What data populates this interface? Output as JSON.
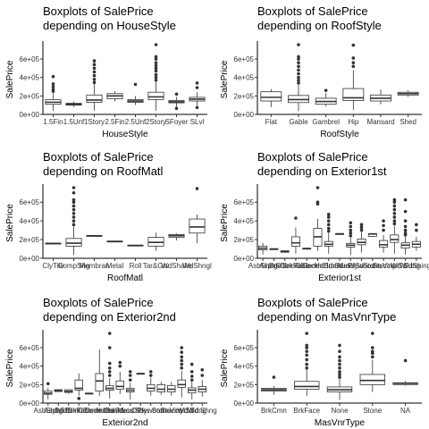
{
  "chart_data": [
    {
      "type": "boxplot",
      "title_line1": "Boxplots of SalePrice",
      "title_line2": " depending on HouseStyle",
      "xlabel": "HouseStyle",
      "ylabel": "SalePrice",
      "ylim": [
        0,
        755000
      ],
      "yticks": [
        "0e+00",
        "2e+05",
        "4e+05",
        "6e+05"
      ],
      "yticks_values": [
        0,
        200000,
        400000,
        600000
      ],
      "categories": [
        "1.5Fin",
        "1.5Unf",
        "1Story",
        "2.5Fin",
        "2.5Unf",
        "2Story",
        "SFoyer",
        "SLvl"
      ],
      "boxes": [
        {
          "lo": 40000,
          "q1": 110000,
          "med": 132000,
          "q3": 160000,
          "hi": 230000,
          "outliers": [
            250000,
            270000,
            300000,
            330000,
            410000
          ]
        },
        {
          "lo": 80000,
          "q1": 100000,
          "med": 111000,
          "q3": 120000,
          "hi": 140000,
          "outliers": []
        },
        {
          "lo": 40000,
          "q1": 130000,
          "med": 155000,
          "q3": 210000,
          "hi": 330000,
          "outliers": [
            345000,
            380000,
            420000,
            460000,
            500000,
            540000,
            580000
          ]
        },
        {
          "lo": 140000,
          "q1": 170000,
          "med": 200000,
          "q3": 225000,
          "hi": 250000,
          "outliers": []
        },
        {
          "lo": 100000,
          "q1": 130000,
          "med": 145000,
          "q3": 160000,
          "hi": 200000,
          "outliers": [
            325000
          ]
        },
        {
          "lo": 40000,
          "q1": 160000,
          "med": 190000,
          "q3": 240000,
          "hi": 350000,
          "outliers": [
            370000,
            400000,
            430000,
            470000,
            500000,
            530000,
            560000,
            600000,
            625000,
            755000
          ]
        },
        {
          "lo": 75000,
          "q1": 125000,
          "med": 136000,
          "q3": 150000,
          "hi": 190000,
          "outliers": [
            65000,
            220000
          ]
        },
        {
          "lo": 95000,
          "q1": 145000,
          "med": 165000,
          "q3": 185000,
          "hi": 240000,
          "outliers": [
            75000,
            290000,
            340000
          ]
        }
      ]
    },
    {
      "type": "boxplot",
      "title_line1": "Boxplots of SalePrice",
      "title_line2": " depending on RoofStyle",
      "xlabel": "RoofStyle",
      "ylabel": "SalePrice",
      "ylim": [
        0,
        755000
      ],
      "yticks": [
        "0e+00",
        "2e+05",
        "4e+05",
        "6e+05"
      ],
      "yticks_values": [
        0,
        200000,
        400000,
        600000
      ],
      "categories": [
        "Flat",
        "Gable",
        "Gambrel",
        "Hip",
        "Mansard",
        "Shed"
      ],
      "boxes": [
        {
          "lo": 80000,
          "q1": 145000,
          "med": 185000,
          "q3": 245000,
          "hi": 275000,
          "outliers": []
        },
        {
          "lo": 35000,
          "q1": 128000,
          "med": 160000,
          "q3": 205000,
          "hi": 320000,
          "outliers": [
            340000,
            370000,
            400000,
            440000,
            480000,
            520000,
            560000,
            600000,
            625000,
            755000
          ]
        },
        {
          "lo": 85000,
          "q1": 110000,
          "med": 140000,
          "q3": 175000,
          "hi": 230000,
          "outliers": [
            260000
          ]
        },
        {
          "lo": 50000,
          "q1": 150000,
          "med": 180000,
          "q3": 280000,
          "hi": 480000,
          "outliers": [
            520000,
            560000,
            610000,
            750000
          ]
        },
        {
          "lo": 110000,
          "q1": 145000,
          "med": 175000,
          "q3": 210000,
          "hi": 270000,
          "outliers": []
        },
        {
          "lo": 190000,
          "q1": 210000,
          "med": 225000,
          "q3": 240000,
          "hi": 260000,
          "outliers": []
        }
      ]
    },
    {
      "type": "boxplot",
      "title_line1": "Boxplots of SalePrice",
      "title_line2": " depending on RoofMatl",
      "xlabel": "RoofMatl",
      "ylabel": "SalePrice",
      "ylim": [
        0,
        755000
      ],
      "yticks": [
        "0e+00",
        "2e+05",
        "4e+05",
        "6e+05"
      ],
      "yticks_values": [
        0,
        200000,
        400000,
        600000
      ],
      "categories": [
        "ClyTile",
        "CompShg",
        "Membran",
        "Metal",
        "Roll",
        "Tar&Grv",
        "WdShake",
        "WdShngl"
      ],
      "boxes": [
        {
          "lo": 160000,
          "q1": 160000,
          "med": 160000,
          "q3": 160000,
          "hi": 160000,
          "outliers": []
        },
        {
          "lo": 35000,
          "q1": 130000,
          "med": 162000,
          "q3": 212000,
          "hi": 340000,
          "outliers": [
            360000,
            400000,
            440000,
            480000,
            520000,
            560000,
            600000,
            625000,
            700000,
            755000
          ]
        },
        {
          "lo": 240000,
          "q1": 240000,
          "med": 241000,
          "q3": 242000,
          "hi": 242000,
          "outliers": []
        },
        {
          "lo": 180000,
          "q1": 180000,
          "med": 181000,
          "q3": 182000,
          "hi": 182000,
          "outliers": []
        },
        {
          "lo": 137000,
          "q1": 137000,
          "med": 138000,
          "q3": 139000,
          "hi": 139000,
          "outliers": []
        },
        {
          "lo": 80000,
          "q1": 130000,
          "med": 170000,
          "q3": 225000,
          "hi": 275000,
          "outliers": []
        },
        {
          "lo": 190000,
          "q1": 225000,
          "med": 242000,
          "q3": 255000,
          "hi": 265000,
          "outliers": []
        },
        {
          "lo": 160000,
          "q1": 270000,
          "med": 335000,
          "q3": 420000,
          "hi": 470000,
          "outliers": [
            745000
          ]
        }
      ]
    },
    {
      "type": "boxplot",
      "title_line1": "Boxplots of SalePrice",
      "title_line2": " depending on Exterior1st",
      "xlabel": "Exterior1st",
      "ylabel": "SalePrice",
      "ylim": [
        0,
        755000
      ],
      "yticks": [
        "0e+00",
        "2e+05",
        "4e+05",
        "6e+05"
      ],
      "yticks_values": [
        0,
        200000,
        400000,
        600000
      ],
      "categories": [
        "AsbShng",
        "AsphShn",
        "BrkComm",
        "BrkFace",
        "CBlock",
        "CemntBd",
        "HdBoard",
        "ImStucc",
        "MetalSd",
        "Plywood",
        "Stone",
        "Stucco",
        "VinylSd",
        "Wd Sdng",
        "WdShing"
      ],
      "boxes": [
        {
          "lo": 40000,
          "q1": 90000,
          "med": 108000,
          "q3": 130000,
          "hi": 165000,
          "outliers": []
        },
        {
          "lo": 100000,
          "q1": 100000,
          "med": 100000,
          "q3": 100000,
          "hi": 100000,
          "outliers": []
        },
        {
          "lo": 60000,
          "q1": 65000,
          "med": 71000,
          "q3": 80000,
          "hi": 82000,
          "outliers": []
        },
        {
          "lo": 50000,
          "q1": 130000,
          "med": 165000,
          "q3": 230000,
          "hi": 330000,
          "outliers": [
            430000
          ]
        },
        {
          "lo": 105000,
          "q1": 105000,
          "med": 105000,
          "q3": 105000,
          "hi": 105000,
          "outliers": []
        },
        {
          "lo": 80000,
          "q1": 130000,
          "med": 230000,
          "q3": 320000,
          "hi": 420000,
          "outliers": [
            580000,
            600000,
            755000
          ]
        },
        {
          "lo": 50000,
          "q1": 130000,
          "med": 150000,
          "q3": 180000,
          "hi": 270000,
          "outliers": [
            290000,
            320000,
            360000,
            400000,
            440000,
            470000
          ]
        },
        {
          "lo": 262000,
          "q1": 262000,
          "med": 262000,
          "q3": 262000,
          "hi": 262000,
          "outliers": []
        },
        {
          "lo": 35000,
          "q1": 120000,
          "med": 140000,
          "q3": 160000,
          "hi": 220000,
          "outliers": [
            240000,
            270000,
            300000,
            340000,
            380000
          ]
        },
        {
          "lo": 60000,
          "q1": 145000,
          "med": 170000,
          "q3": 205000,
          "hi": 280000,
          "outliers": [
            300000,
            330000,
            360000
          ]
        },
        {
          "lo": 230000,
          "q1": 235000,
          "med": 260000,
          "q3": 265000,
          "hi": 270000,
          "outliers": []
        },
        {
          "lo": 60000,
          "q1": 120000,
          "med": 145000,
          "q3": 190000,
          "hi": 250000,
          "outliers": [
            300000,
            350000,
            400000
          ]
        },
        {
          "lo": 50000,
          "q1": 170000,
          "med": 200000,
          "q3": 250000,
          "hi": 350000,
          "outliers": [
            370000,
            400000,
            440000,
            480000,
            520000,
            560000,
            600000,
            625000
          ]
        },
        {
          "lo": 40000,
          "q1": 110000,
          "med": 140000,
          "q3": 165000,
          "hi": 230000,
          "outliers": [
            250000,
            270000,
            300000,
            340000,
            400000,
            500000,
            625000
          ]
        },
        {
          "lo": 80000,
          "q1": 120000,
          "med": 150000,
          "q3": 180000,
          "hi": 230000,
          "outliers": [
            300000,
            360000
          ]
        }
      ]
    },
    {
      "type": "boxplot",
      "title_line1": "Boxplots of SalePrice",
      "title_line2": " depending on Exterior2nd",
      "xlabel": "Exterior2nd",
      "ylabel": "SalePrice",
      "ylim": [
        0,
        755000
      ],
      "yticks": [
        "0e+00",
        "2e+05",
        "4e+05",
        "6e+05"
      ],
      "yticks_values": [
        0,
        200000,
        400000,
        600000
      ],
      "categories": [
        "AsbShng",
        "AsphShn",
        "Brk Cmn",
        "BrkFace",
        "CBlock",
        "CmentBd",
        "HdBoard",
        "ImStucc",
        "MetalSd",
        "Other",
        "Plywood",
        "Stone",
        "Stucco",
        "VinylSd",
        "Wd Sdng",
        "Wd Shng"
      ],
      "boxes": [
        {
          "lo": 40000,
          "q1": 95000,
          "med": 108000,
          "q3": 130000,
          "hi": 165000,
          "outliers": [
            210000
          ]
        },
        {
          "lo": 120000,
          "q1": 125000,
          "med": 135000,
          "q3": 145000,
          "hi": 150000,
          "outliers": []
        },
        {
          "lo": 100000,
          "q1": 115000,
          "med": 128000,
          "q3": 145000,
          "hi": 150000,
          "outliers": []
        },
        {
          "lo": 80000,
          "q1": 140000,
          "med": 160000,
          "q3": 250000,
          "hi": 320000,
          "outliers": [
            50000
          ]
        },
        {
          "lo": 105000,
          "q1": 105000,
          "med": 105000,
          "q3": 105000,
          "hi": 105000,
          "outliers": []
        },
        {
          "lo": 80000,
          "q1": 130000,
          "med": 240000,
          "q3": 320000,
          "hi": 580000,
          "outliers": []
        },
        {
          "lo": 50000,
          "q1": 140000,
          "med": 160000,
          "q3": 190000,
          "hi": 270000,
          "outliers": [
            300000,
            340000,
            380000,
            430000,
            600000,
            755000
          ]
        },
        {
          "lo": 100000,
          "q1": 150000,
          "med": 180000,
          "q3": 240000,
          "hi": 340000,
          "outliers": [
            400000,
            440000
          ]
        },
        {
          "lo": 40000,
          "q1": 120000,
          "med": 140000,
          "q3": 160000,
          "hi": 220000,
          "outliers": [
            250000,
            300000,
            340000
          ]
        },
        {
          "lo": 320000,
          "q1": 320000,
          "med": 320000,
          "q3": 320000,
          "hi": 320000,
          "outliers": []
        },
        {
          "lo": 80000,
          "q1": 130000,
          "med": 160000,
          "q3": 200000,
          "hi": 275000,
          "outliers": [
            300000,
            340000
          ]
        },
        {
          "lo": 90000,
          "q1": 120000,
          "med": 150000,
          "q3": 200000,
          "hi": 230000,
          "outliers": []
        },
        {
          "lo": 80000,
          "q1": 120000,
          "med": 150000,
          "q3": 190000,
          "hi": 230000,
          "outliers": []
        },
        {
          "lo": 60000,
          "q1": 170000,
          "med": 200000,
          "q3": 250000,
          "hi": 350000,
          "outliers": [
            380000,
            420000,
            460000,
            500000,
            550000,
            600000
          ]
        },
        {
          "lo": 40000,
          "q1": 110000,
          "med": 140000,
          "q3": 165000,
          "hi": 230000,
          "outliers": [
            250000,
            290000,
            340000,
            420000
          ]
        },
        {
          "lo": 70000,
          "q1": 120000,
          "med": 150000,
          "q3": 180000,
          "hi": 250000,
          "outliers": [
            300000,
            360000
          ]
        }
      ]
    },
    {
      "type": "boxplot",
      "title_line1": "Boxplots of SalePrice",
      "title_line2": " depending on MasVnrType",
      "xlabel": "MasVnrType",
      "ylabel": "SalePrice",
      "ylim": [
        0,
        755000
      ],
      "yticks": [
        "0e+00",
        "2e+05",
        "4e+05",
        "6e+05"
      ],
      "yticks_values": [
        0,
        200000,
        400000,
        600000
      ],
      "categories": [
        "BrkCmn",
        "BrkFace",
        "None",
        "Stone",
        "NA"
      ],
      "boxes": [
        {
          "lo": 90000,
          "q1": 130000,
          "med": 145000,
          "q3": 160000,
          "hi": 185000,
          "outliers": [
            280000
          ]
        },
        {
          "lo": 75000,
          "q1": 150000,
          "med": 180000,
          "q3": 235000,
          "hi": 360000,
          "outliers": [
            380000,
            420000,
            470000,
            520000,
            560000,
            600000,
            625000,
            755000
          ]
        },
        {
          "lo": 35000,
          "q1": 120000,
          "med": 145000,
          "q3": 175000,
          "hi": 260000,
          "outliers": [
            280000,
            310000,
            340000,
            380000,
            420000,
            460000,
            500000,
            560000,
            625000
          ]
        },
        {
          "lo": 120000,
          "q1": 200000,
          "med": 245000,
          "q3": 310000,
          "hi": 470000,
          "outliers": [
            500000,
            540000,
            560000,
            600000,
            755000
          ]
        },
        {
          "lo": 190000,
          "q1": 200000,
          "med": 215000,
          "q3": 220000,
          "hi": 240000,
          "outliers": [
            460000
          ]
        }
      ]
    }
  ]
}
